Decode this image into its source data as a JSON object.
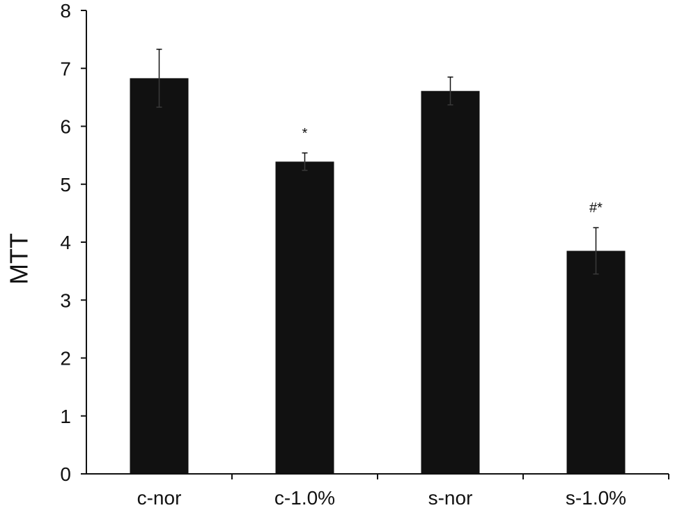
{
  "chart_data": {
    "type": "bar",
    "title": "",
    "xlabel": "",
    "ylabel": "MTT",
    "ylim": [
      0,
      8
    ],
    "yticks": [
      0,
      1,
      2,
      3,
      4,
      5,
      6,
      7,
      8
    ],
    "categories": [
      "c-nor",
      "c-1.0%",
      "s-nor",
      "s-1.0%"
    ],
    "values": [
      6.83,
      5.39,
      6.61,
      3.85
    ],
    "error": [
      0.5,
      0.15,
      0.24,
      0.4
    ],
    "annotations": [
      "",
      "*",
      "",
      "#*"
    ],
    "grid": false,
    "legend": "none",
    "bar_color": "#111111",
    "axis_color": "#111111"
  }
}
